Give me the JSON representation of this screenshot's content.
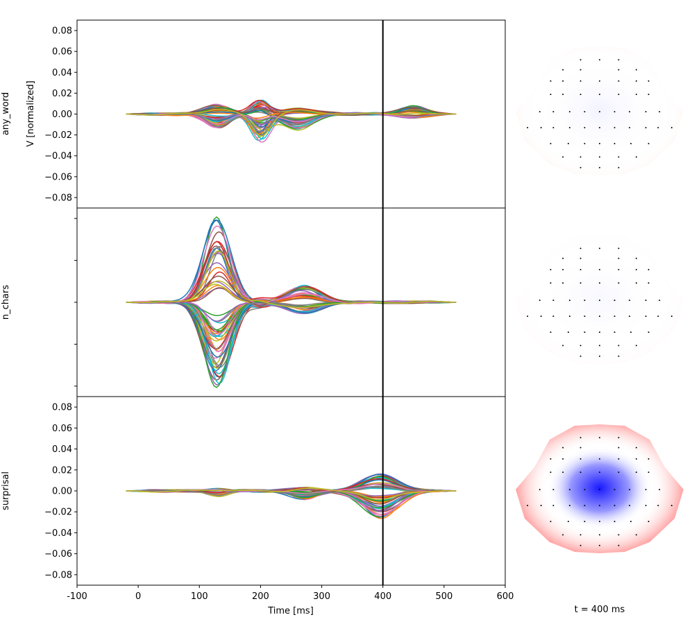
{
  "chart_data": [
    {
      "type": "line",
      "panel": "any_word",
      "row_label": "any_word",
      "ylabel": "V [normalized]",
      "xlim": [
        -100,
        600
      ],
      "ylim": [
        -0.09,
        0.09
      ],
      "yticks": [
        "0.08",
        "0.06",
        "0.04",
        "0.02",
        "0.00",
        "−0.02",
        "−0.04",
        "−0.06",
        "−0.08"
      ],
      "ytick_values": [
        0.08,
        0.06,
        0.04,
        0.02,
        0.0,
        -0.02,
        -0.04,
        -0.06,
        -0.08
      ],
      "show_yticklabels": true,
      "show_xticklabels": false,
      "vline_x": 400,
      "n_channels": 59,
      "x_range": [
        -20,
        520
      ],
      "components": [
        {
          "t": 200,
          "sigma": 14,
          "amp_min": -0.028,
          "amp_max": 0.013
        },
        {
          "t": 130,
          "sigma": 20,
          "amp_min": -0.013,
          "amp_max": 0.01
        },
        {
          "t": 260,
          "sigma": 25,
          "amp_min": -0.015,
          "amp_max": 0.006
        },
        {
          "t": 450,
          "sigma": 20,
          "amp_min": -0.004,
          "amp_max": 0.008
        }
      ]
    },
    {
      "type": "line",
      "panel": "n_chars",
      "row_label": "n_chars",
      "xlim": [
        -100,
        600
      ],
      "ylim": [
        -0.09,
        0.09
      ],
      "ytick_values": [
        0.08,
        0.04,
        0.0,
        -0.04,
        -0.08
      ],
      "show_yticklabels": false,
      "show_xticklabels": false,
      "vline_x": 400,
      "n_channels": 59,
      "x_range": [
        -20,
        520
      ],
      "components": [
        {
          "t": 130,
          "sigma": 20,
          "amp_min": -0.083,
          "amp_max": 0.081
        },
        {
          "t": 270,
          "sigma": 26,
          "amp_min": -0.012,
          "amp_max": 0.016
        },
        {
          "t": 200,
          "sigma": 12,
          "amp_min": -0.004,
          "amp_max": 0.003
        }
      ]
    },
    {
      "type": "line",
      "panel": "surprisal",
      "row_label": "surprisal",
      "xlabel": "Time [ms]",
      "xlim": [
        -100,
        600
      ],
      "ylim": [
        -0.09,
        0.09
      ],
      "yticks": [
        "0.08",
        "0.06",
        "0.04",
        "0.02",
        "0.00",
        "−0.02",
        "−0.04",
        "−0.06",
        "−0.08"
      ],
      "ytick_values": [
        0.08,
        0.06,
        0.04,
        0.02,
        0.0,
        -0.02,
        -0.04,
        -0.06,
        -0.08
      ],
      "xticks": [
        "-100",
        "0",
        "100",
        "200",
        "300",
        "400",
        "500",
        "600"
      ],
      "xtick_values": [
        -100,
        0,
        100,
        200,
        300,
        400,
        500,
        600
      ],
      "show_yticklabels": true,
      "show_xticklabels": true,
      "vline_x": 400,
      "n_channels": 59,
      "x_range": [
        -20,
        520
      ],
      "components": [
        {
          "t": 395,
          "sigma": 28,
          "amp_min": -0.027,
          "amp_max": 0.016
        },
        {
          "t": 270,
          "sigma": 20,
          "amp_min": -0.008,
          "amp_max": 0.003
        },
        {
          "t": 130,
          "sigma": 15,
          "amp_min": -0.005,
          "amp_max": 0.002
        }
      ]
    },
    {
      "type": "heatmap",
      "panel": "topomaps",
      "caption": "t = 400 ms",
      "colors": {
        "negative": "#0000ff",
        "positive": "#ff0000",
        "zero": "#ffffff"
      },
      "maps": [
        {
          "row": "any_word",
          "intensity": 0.08,
          "pattern": "faint"
        },
        {
          "row": "n_chars",
          "intensity": 0.05,
          "pattern": "faint"
        },
        {
          "row": "surprisal",
          "intensity": 0.9,
          "pattern": "central-negative"
        }
      ]
    }
  ]
}
